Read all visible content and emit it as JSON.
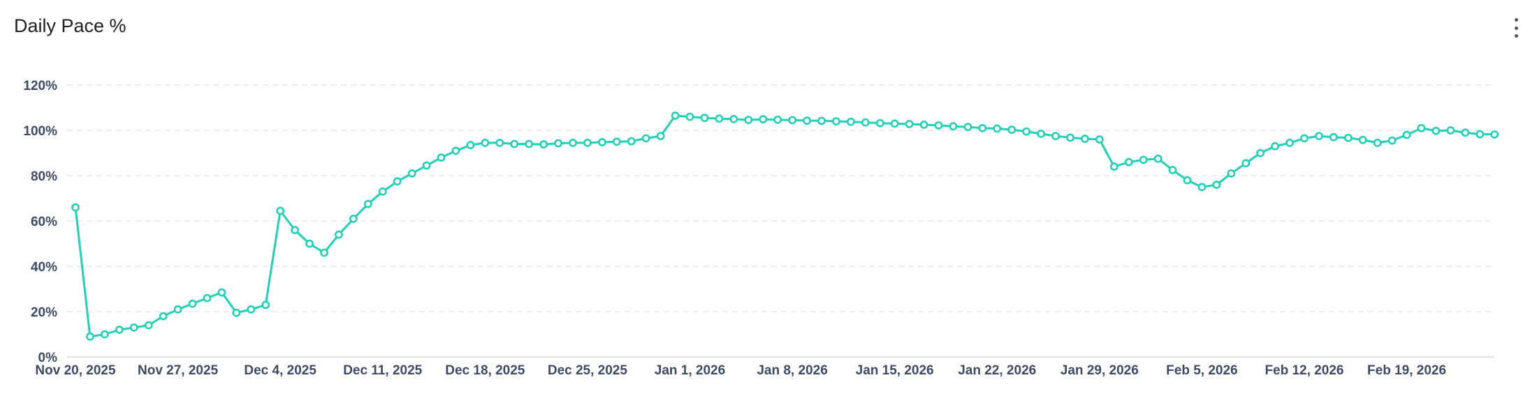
{
  "header": {
    "title": "Daily Pace %",
    "menu_icon": "kebab-menu-icon"
  },
  "colors": {
    "line": "#1fd1b5",
    "grid": "#e4e6ea",
    "axis_text": "#3d4a66"
  },
  "chart_data": {
    "type": "line",
    "title": "Daily Pace %",
    "xlabel": "",
    "ylabel": "",
    "x_start": "2025-11-20",
    "x_end": "2026-02-26",
    "ylim": [
      0,
      120
    ],
    "y_ticks": [
      "0%",
      "20%",
      "40%",
      "60%",
      "80%",
      "100%",
      "120%"
    ],
    "x_ticks": [
      "Nov 20, 2025",
      "Nov 27, 2025",
      "Dec 4, 2025",
      "Dec 11, 2025",
      "Dec 18, 2025",
      "Dec 25, 2025",
      "Jan 1, 2026",
      "Jan 8, 2026",
      "Jan 15, 2026",
      "Jan 22, 2026",
      "Jan 29, 2026",
      "Feb 5, 2026",
      "Feb 12, 2026",
      "Feb 19, 2026"
    ],
    "grid": true,
    "legend": "none",
    "series": [
      {
        "values": [
          66,
          9,
          10,
          12,
          13,
          14,
          18,
          21,
          23.5,
          26,
          28.5,
          19.5,
          21,
          23,
          64.5,
          56,
          50,
          46,
          54,
          61,
          67.5,
          73,
          77.5,
          81,
          84.5,
          88,
          91,
          93.5,
          94.5,
          94.5,
          94,
          94,
          93.8,
          94.3,
          94.5,
          94.5,
          94.8,
          95,
          95.2,
          96.5,
          97.5,
          106.5,
          106,
          105.5,
          105.2,
          105,
          104.6,
          104.9,
          104.7,
          104.5,
          104.3,
          104.2,
          104,
          103.8,
          103.5,
          103.2,
          103,
          102.8,
          102.5,
          102.2,
          101.8,
          101.5,
          101,
          100.8,
          100.3,
          99.5,
          98.5,
          97.5,
          96.8,
          96.3,
          96,
          84,
          86,
          87,
          87.5,
          82.5,
          78,
          75,
          76,
          81,
          85.5,
          90,
          93,
          94.5,
          96.5,
          97.5,
          97,
          96.7,
          95.8,
          94.5,
          95.5,
          98,
          101,
          99.8,
          100,
          99,
          98.3,
          98.2
        ]
      }
    ]
  }
}
